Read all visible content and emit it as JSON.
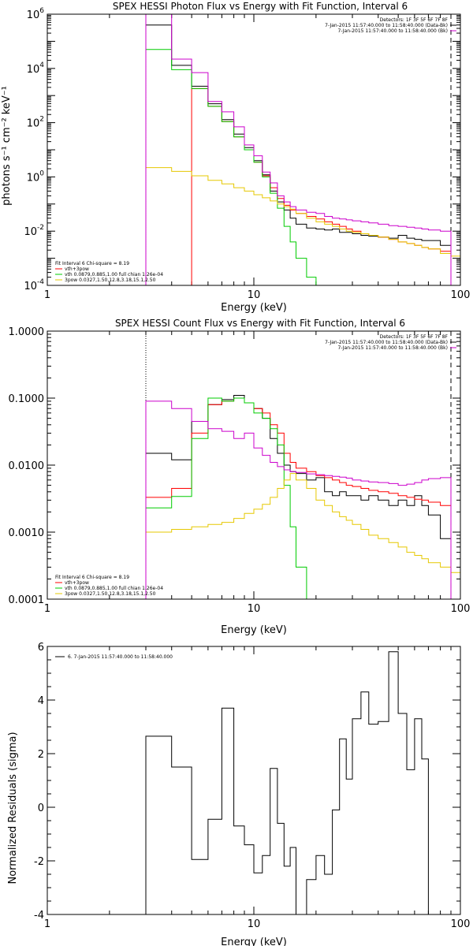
{
  "colors": {
    "black": "#000000",
    "red": "#ff0000",
    "green": "#00cc00",
    "yellow": "#e6c800",
    "magenta": "#cc00cc",
    "orange": "#ffa500"
  },
  "chart_data": [
    {
      "type": "line",
      "title": "SPEX HESSI Photon Flux vs Energy with Fit Function, Interval 6",
      "xlabel": "Energy (keV)",
      "ylabel": "photons s⁻¹ cm⁻² keV⁻¹",
      "xscale": "log",
      "yscale": "log",
      "xlim": [
        1,
        100
      ],
      "ylim": [
        0.0001,
        1000000
      ],
      "xtick_labels": [
        "1",
        "10",
        "100"
      ],
      "ytick_labels": [
        {
          "base": "10",
          "exp": "-4"
        },
        {
          "base": "10",
          "exp": "-2"
        },
        {
          "base": "10",
          "exp": "0"
        },
        {
          "base": "10",
          "exp": "2"
        },
        {
          "base": "10",
          "exp": "4"
        },
        {
          "base": "10",
          "exp": "6"
        }
      ],
      "legend_upper_right": {
        "lines": [
          {
            "text": "Detectors: 1F 3F 5F 6F 7F 8F",
            "mark": null
          },
          {
            "text": "7-Jan-2015 11:57:40.000 to 11:58:40.000 (Data-Bk)",
            "mark": "black"
          },
          {
            "text": "7-Jan-2015 11:57:40.000 to 11:58:40.000 (Bk)",
            "mark": "magenta"
          }
        ]
      },
      "legend_lower_left": {
        "lines": [
          {
            "text": "Fit Interval 6   Chi-square = 8.19",
            "color": "black"
          },
          {
            "text": "vth+3pow",
            "color": "red"
          },
          {
            "text": "vth 0.0879,0.885,1.00  full chian 1.26e-04",
            "color": "green"
          },
          {
            "text": "3pow 0.0327,1.50,12.8,3.18,15.1,2.50",
            "color": "yellow"
          }
        ]
      },
      "markers": {
        "dotted_x": 3.0,
        "dashed_x": 90
      },
      "bin_edges": [
        3,
        4,
        5,
        6,
        7,
        8,
        9,
        10,
        11,
        12,
        13,
        14,
        15,
        16,
        18,
        20,
        22,
        24,
        26,
        28,
        30,
        33,
        36,
        40,
        45,
        50,
        55,
        60,
        65,
        70,
        80,
        90,
        100
      ],
      "series": [
        {
          "name": "Data-Bk",
          "color": "black",
          "values": [
            400000.0,
            13000.0,
            2200,
            500,
            130,
            38,
            12,
            4,
            1.2,
            0.3,
            0.12,
            0.06,
            0.03,
            0.018,
            0.013,
            0.012,
            0.011,
            0.012,
            0.009,
            0.009,
            0.008,
            0.007,
            0.0065,
            0.006,
            0.0055,
            0.007,
            0.0055,
            0.005,
            0.0045,
            0.0045,
            0.003,
            null
          ]
        },
        {
          "name": "vth+3pow",
          "color": "red",
          "values": [
            null,
            null,
            1800,
            400,
            110,
            30,
            10,
            3.5,
            1.1,
            0.4,
            0.16,
            0.09,
            0.06,
            0.045,
            0.035,
            0.028,
            0.022,
            0.018,
            0.015,
            0.012,
            0.01,
            0.008,
            0.007,
            0.006,
            0.005,
            0.004,
            0.0035,
            0.003,
            0.0025,
            0.0022,
            0.0018,
            null
          ]
        },
        {
          "name": "vth",
          "color": "green",
          "values": [
            50000.0,
            9000.0,
            1800,
            400,
            110,
            30,
            10,
            3.5,
            1.0,
            0.25,
            0.07,
            0.015,
            0.004,
            0.001,
            0.0002,
            3e-05,
            null,
            null,
            null,
            null,
            null,
            null,
            null,
            null,
            null,
            null,
            null,
            null,
            null,
            null,
            null,
            null
          ]
        },
        {
          "name": "3pow",
          "color": "yellow",
          "values": [
            2.2,
            1.6,
            1.1,
            0.75,
            0.55,
            0.4,
            0.3,
            0.22,
            0.17,
            0.13,
            0.1,
            0.08,
            0.065,
            0.045,
            0.03,
            0.022,
            0.018,
            0.015,
            0.012,
            0.01,
            0.009,
            0.008,
            0.007,
            0.006,
            0.005,
            0.004,
            0.0035,
            0.003,
            0.0025,
            0.0022,
            0.0015,
            0.0012
          ]
        },
        {
          "name": "Bk",
          "color": "magenta",
          "values": [
            1000000.0,
            22000.0,
            7000,
            600,
            250,
            70,
            15,
            6,
            1.5,
            0.6,
            0.2,
            0.12,
            0.08,
            0.06,
            0.05,
            0.045,
            0.035,
            0.03,
            0.028,
            0.026,
            0.024,
            0.022,
            0.02,
            0.018,
            0.016,
            0.015,
            0.014,
            0.013,
            0.012,
            0.011,
            0.01,
            null
          ]
        }
      ]
    },
    {
      "type": "line",
      "title": "SPEX HESSI Count Flux vs Energy with Fit Function, Interval 6",
      "xlabel": "Energy (keV)",
      "ylabel": "",
      "xscale": "log",
      "yscale": "log",
      "xlim": [
        1,
        100
      ],
      "ylim": [
        0.0001,
        1.0
      ],
      "xtick_labels": [
        "1",
        "10",
        "100"
      ],
      "ytick_labels": [
        "0.0001",
        "0.0010",
        "0.0100",
        "0.1000",
        "1.0000"
      ],
      "legend_upper_right": {
        "lines": [
          {
            "text": "Detectors: 1F 3F 5F 6F 7F 8F",
            "mark": null
          },
          {
            "text": "7-Jan-2015 11:57:40.000 to 11:58:40.000 (Data-Bk)",
            "mark": "black"
          },
          {
            "text": "7-Jan-2015 11:57:40.000 to 11:58:40.000 (Bk)",
            "mark": "magenta"
          }
        ]
      },
      "legend_lower_left": {
        "lines": [
          {
            "text": "Fit Interval 6   Chi-square = 8.19",
            "color": "black"
          },
          {
            "text": "vth+3pow",
            "color": "red"
          },
          {
            "text": "vth 0.0879,0.885,1.00  full chian 1.26e-04",
            "color": "green"
          },
          {
            "text": "3pow 0.0327,1.50,12.8,3.18,15.1,2.50",
            "color": "yellow"
          }
        ]
      },
      "markers": {
        "dotted_x": 3.0,
        "dashed_x": 90
      },
      "bin_edges": [
        3,
        4,
        5,
        6,
        7,
        8,
        9,
        10,
        11,
        12,
        13,
        14,
        15,
        16,
        18,
        20,
        22,
        24,
        26,
        28,
        30,
        33,
        36,
        40,
        45,
        50,
        55,
        60,
        65,
        70,
        80,
        90,
        100
      ],
      "series": [
        {
          "name": "Data-Bk",
          "color": "black",
          "values": [
            0.015,
            0.012,
            0.045,
            0.08,
            0.095,
            0.11,
            0.085,
            0.07,
            0.05,
            0.025,
            0.015,
            0.01,
            0.008,
            0.0075,
            0.006,
            0.0065,
            0.004,
            0.0035,
            0.004,
            0.0035,
            0.0035,
            0.003,
            0.0035,
            0.003,
            0.0025,
            0.003,
            0.0025,
            0.0035,
            0.0025,
            0.0018,
            0.0008,
            null
          ]
        },
        {
          "name": "vth+3pow",
          "color": "red",
          "values": [
            0.0033,
            0.0045,
            0.03,
            0.08,
            0.09,
            0.1,
            0.085,
            0.07,
            0.06,
            0.04,
            0.03,
            0.015,
            0.011,
            0.009,
            0.008,
            0.007,
            0.0065,
            0.006,
            0.0055,
            0.005,
            0.0048,
            0.0045,
            0.0042,
            0.004,
            0.0038,
            0.0035,
            0.0033,
            0.0031,
            0.003,
            0.0028,
            0.0025,
            null
          ]
        },
        {
          "name": "vth",
          "color": "green",
          "values": [
            0.0023,
            0.0034,
            0.025,
            0.1,
            0.09,
            0.1,
            0.085,
            0.06,
            0.05,
            0.035,
            0.02,
            0.005,
            0.0012,
            0.0003,
            5e-05,
            null,
            null,
            null,
            null,
            null,
            null,
            null,
            null,
            null,
            null,
            null,
            null,
            null,
            null,
            null,
            null,
            null
          ]
        },
        {
          "name": "3pow",
          "color": "yellow",
          "values": [
            0.001,
            0.0011,
            0.0012,
            0.0013,
            0.0014,
            0.0016,
            0.0019,
            0.0022,
            0.0026,
            0.0033,
            0.0045,
            0.006,
            0.0075,
            0.006,
            0.0045,
            0.003,
            0.0025,
            0.002,
            0.0017,
            0.0015,
            0.0013,
            0.0011,
            0.0009,
            0.0008,
            0.0007,
            0.0006,
            0.0005,
            0.00045,
            0.0004,
            0.00035,
            0.0003,
            0.00025
          ]
        },
        {
          "name": "Bk",
          "color": "magenta",
          "values": [
            0.09,
            0.07,
            0.045,
            0.035,
            0.032,
            0.025,
            0.03,
            0.018,
            0.014,
            0.011,
            0.0095,
            0.0085,
            0.008,
            0.0078,
            0.0074,
            0.0072,
            0.007,
            0.0068,
            0.0066,
            0.0064,
            0.006,
            0.0058,
            0.0056,
            0.0055,
            0.0053,
            0.005,
            0.0052,
            0.0055,
            0.006,
            0.0063,
            0.0065,
            null
          ]
        }
      ]
    },
    {
      "type": "line",
      "title": "",
      "xlabel": "Energy (keV)",
      "ylabel": "Normalized Residuals (sigma)",
      "xscale": "log",
      "yscale": "linear",
      "xlim": [
        1,
        100
      ],
      "ylim": [
        -4,
        6
      ],
      "xtick_labels": [
        "1",
        "10",
        "100"
      ],
      "ytick_labels": [
        "-4",
        "-2",
        "0",
        "2",
        "4",
        "6"
      ],
      "legend_upper_left": {
        "text": "6. 7-Jan-2015 11:57:40.000 to 11:58:40.000"
      },
      "bin_edges": [
        3,
        4,
        5,
        6,
        7,
        8,
        9,
        10,
        11,
        12,
        13,
        14,
        15,
        16,
        18,
        20,
        22,
        24,
        26,
        28,
        30,
        33,
        36,
        40,
        45,
        50,
        55,
        60,
        65,
        70,
        80,
        90
      ],
      "series": [
        {
          "name": "6. 7-Jan-2015 11:57:40.000 to 11:58:40.000",
          "color": "black",
          "values": [
            2.65,
            1.5,
            -1.95,
            -0.45,
            3.7,
            -0.7,
            -1.4,
            -2.45,
            -1.8,
            1.45,
            -0.6,
            -2.2,
            -1.5,
            -4.1,
            -2.7,
            -1.8,
            -2.5,
            -0.1,
            2.55,
            1.05,
            3.3,
            4.3,
            3.1,
            3.2,
            5.8,
            3.5,
            1.4,
            3.3,
            1.8,
            -4.1,
            null
          ]
        }
      ]
    }
  ]
}
